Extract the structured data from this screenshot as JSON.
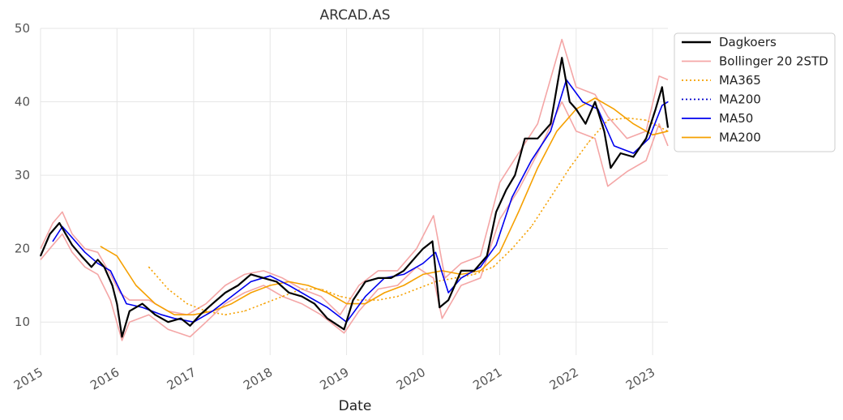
{
  "chart_data": {
    "type": "line",
    "title": "ARCAD.AS",
    "xlabel": "Date",
    "ylabel": "",
    "xlim": [
      "2015-01-01",
      "2023-03-15"
    ],
    "ylim": [
      5.5,
      50
    ],
    "x_ticks": [
      "2015",
      "2016",
      "2017",
      "2018",
      "2019",
      "2020",
      "2021",
      "2022",
      "2023"
    ],
    "y_ticks": [
      10,
      20,
      30,
      40,
      50
    ],
    "grid": true,
    "legend_position": "top-right outside",
    "series": [
      {
        "name": "Dagkoers",
        "color": "#000000",
        "style": "solid",
        "points": [
          [
            "2015-01-01",
            19
          ],
          [
            "2015-02-15",
            22
          ],
          [
            "2015-04-01",
            23.5
          ],
          [
            "2015-05-01",
            22
          ],
          [
            "2015-06-01",
            20.5
          ],
          [
            "2015-07-15",
            19
          ],
          [
            "2015-09-01",
            17.5
          ],
          [
            "2015-10-01",
            18.5
          ],
          [
            "2015-11-01",
            17.5
          ],
          [
            "2015-12-10",
            15
          ],
          [
            "2016-01-01",
            12.5
          ],
          [
            "2016-01-25",
            8
          ],
          [
            "2016-03-01",
            11.5
          ],
          [
            "2016-05-01",
            12.5
          ],
          [
            "2016-07-01",
            11
          ],
          [
            "2016-09-01",
            10
          ],
          [
            "2016-11-01",
            10.5
          ],
          [
            "2016-12-15",
            9.5
          ],
          [
            "2017-02-01",
            11
          ],
          [
            "2017-04-01",
            12.5
          ],
          [
            "2017-06-01",
            14
          ],
          [
            "2017-08-01",
            15
          ],
          [
            "2017-10-01",
            16.5
          ],
          [
            "2017-12-01",
            16
          ],
          [
            "2018-02-01",
            15.5
          ],
          [
            "2018-04-01",
            14
          ],
          [
            "2018-06-01",
            13.5
          ],
          [
            "2018-08-01",
            12.5
          ],
          [
            "2018-10-01",
            10.5
          ],
          [
            "2018-12-20",
            9
          ],
          [
            "2019-02-01",
            13
          ],
          [
            "2019-04-01",
            15.5
          ],
          [
            "2019-06-01",
            16
          ],
          [
            "2019-08-01",
            16
          ],
          [
            "2019-10-01",
            17
          ],
          [
            "2019-12-01",
            19
          ],
          [
            "2020-01-01",
            20
          ],
          [
            "2020-02-15",
            21
          ],
          [
            "2020-03-20",
            12
          ],
          [
            "2020-05-01",
            13
          ],
          [
            "2020-07-01",
            17
          ],
          [
            "2020-09-01",
            17
          ],
          [
            "2020-11-01",
            19
          ],
          [
            "2020-12-15",
            25
          ],
          [
            "2021-02-01",
            28
          ],
          [
            "2021-03-15",
            30
          ],
          [
            "2021-05-01",
            35
          ],
          [
            "2021-07-01",
            35
          ],
          [
            "2021-09-01",
            37
          ],
          [
            "2021-10-25",
            46
          ],
          [
            "2021-12-01",
            40
          ],
          [
            "2022-01-01",
            39
          ],
          [
            "2022-02-15",
            37
          ],
          [
            "2022-04-01",
            40
          ],
          [
            "2022-05-15",
            36
          ],
          [
            "2022-06-15",
            31
          ],
          [
            "2022-08-01",
            33
          ],
          [
            "2022-10-01",
            32.5
          ],
          [
            "2022-12-01",
            35
          ],
          [
            "2023-01-15",
            39
          ],
          [
            "2023-02-15",
            42
          ],
          [
            "2023-03-15",
            36.5
          ]
        ]
      },
      {
        "name": "Bollinger 20 2STD",
        "color": "#f4a6a6",
        "style": "solid",
        "upper": [
          [
            "2015-01-01",
            20
          ],
          [
            "2015-03-01",
            23.5
          ],
          [
            "2015-04-15",
            25
          ],
          [
            "2015-06-01",
            22
          ],
          [
            "2015-08-01",
            20
          ],
          [
            "2015-10-01",
            19.5
          ],
          [
            "2015-12-01",
            16.5
          ],
          [
            "2016-01-15",
            14
          ],
          [
            "2016-03-01",
            13
          ],
          [
            "2016-06-01",
            13
          ],
          [
            "2016-09-01",
            11.5
          ],
          [
            "2016-12-01",
            11
          ],
          [
            "2017-03-01",
            12.5
          ],
          [
            "2017-06-01",
            15
          ],
          [
            "2017-09-01",
            16.5
          ],
          [
            "2017-12-01",
            17
          ],
          [
            "2018-03-01",
            16
          ],
          [
            "2018-06-01",
            14.5
          ],
          [
            "2018-09-01",
            13.5
          ],
          [
            "2018-12-01",
            11
          ],
          [
            "2019-03-01",
            15
          ],
          [
            "2019-06-01",
            17
          ],
          [
            "2019-09-01",
            17
          ],
          [
            "2019-12-01",
            20
          ],
          [
            "2020-02-20",
            24.5
          ],
          [
            "2020-04-15",
            16
          ],
          [
            "2020-07-01",
            18
          ],
          [
            "2020-10-01",
            19
          ],
          [
            "2021-01-01",
            29
          ],
          [
            "2021-04-01",
            33
          ],
          [
            "2021-07-01",
            37
          ],
          [
            "2021-10-25",
            48.5
          ],
          [
            "2022-01-01",
            42
          ],
          [
            "2022-04-01",
            41
          ],
          [
            "2022-06-01",
            38
          ],
          [
            "2022-09-01",
            35
          ],
          [
            "2022-12-01",
            36
          ],
          [
            "2023-02-01",
            43.5
          ],
          [
            "2023-03-15",
            43
          ]
        ],
        "lower": [
          [
            "2015-01-01",
            18.5
          ],
          [
            "2015-03-01",
            20.5
          ],
          [
            "2015-04-15",
            22
          ],
          [
            "2015-06-01",
            19.5
          ],
          [
            "2015-08-01",
            17.5
          ],
          [
            "2015-10-01",
            16.5
          ],
          [
            "2015-12-01",
            13
          ],
          [
            "2016-01-25",
            7.5
          ],
          [
            "2016-03-01",
            10
          ],
          [
            "2016-06-01",
            11
          ],
          [
            "2016-09-01",
            9
          ],
          [
            "2016-12-15",
            8
          ],
          [
            "2017-03-01",
            10
          ],
          [
            "2017-06-01",
            12.5
          ],
          [
            "2017-09-01",
            14
          ],
          [
            "2017-12-01",
            15
          ],
          [
            "2018-03-01",
            13.5
          ],
          [
            "2018-06-01",
            12.5
          ],
          [
            "2018-09-01",
            11
          ],
          [
            "2018-12-20",
            8.5
          ],
          [
            "2019-03-01",
            11.5
          ],
          [
            "2019-06-01",
            14.5
          ],
          [
            "2019-09-01",
            15
          ],
          [
            "2019-12-01",
            17.5
          ],
          [
            "2020-02-20",
            16
          ],
          [
            "2020-04-01",
            10.5
          ],
          [
            "2020-07-01",
            15
          ],
          [
            "2020-10-01",
            16
          ],
          [
            "2021-01-01",
            24
          ],
          [
            "2021-04-01",
            28
          ],
          [
            "2021-07-01",
            33
          ],
          [
            "2021-10-25",
            40
          ],
          [
            "2022-01-01",
            36
          ],
          [
            "2022-04-01",
            35
          ],
          [
            "2022-06-01",
            28.5
          ],
          [
            "2022-09-01",
            30.5
          ],
          [
            "2022-12-01",
            32
          ],
          [
            "2023-02-01",
            37
          ],
          [
            "2023-03-15",
            34
          ]
        ]
      },
      {
        "name": "MA365",
        "color": "#f5a000",
        "style": "dotted",
        "points": [
          [
            "2016-06-01",
            17.5
          ],
          [
            "2016-09-01",
            14.5
          ],
          [
            "2016-12-01",
            12.5
          ],
          [
            "2017-03-01",
            11.5
          ],
          [
            "2017-06-01",
            11
          ],
          [
            "2017-09-01",
            11.5
          ],
          [
            "2017-12-01",
            12.5
          ],
          [
            "2018-03-01",
            13.5
          ],
          [
            "2018-06-01",
            14.5
          ],
          [
            "2018-09-01",
            14.5
          ],
          [
            "2018-12-01",
            13.5
          ],
          [
            "2019-03-01",
            13
          ],
          [
            "2019-06-01",
            13
          ],
          [
            "2019-09-01",
            13.5
          ],
          [
            "2019-12-01",
            14.5
          ],
          [
            "2020-03-01",
            15.5
          ],
          [
            "2020-06-01",
            16
          ],
          [
            "2020-09-01",
            16.5
          ],
          [
            "2020-12-01",
            17.5
          ],
          [
            "2021-03-01",
            20
          ],
          [
            "2021-06-01",
            23
          ],
          [
            "2021-09-01",
            27
          ],
          [
            "2021-12-01",
            31
          ],
          [
            "2022-03-01",
            34.5
          ],
          [
            "2022-06-01",
            37.5
          ],
          [
            "2022-09-01",
            37.8
          ],
          [
            "2022-12-01",
            37.5
          ],
          [
            "2023-03-15",
            36
          ]
        ]
      },
      {
        "name": "MA200",
        "color": "#0000cc",
        "style": "dotted",
        "points": []
      },
      {
        "name": "MA50",
        "color": "#0000ee",
        "style": "solid",
        "points": [
          [
            "2015-03-01",
            21
          ],
          [
            "2015-04-15",
            23
          ],
          [
            "2015-06-01",
            21.5
          ],
          [
            "2015-08-01",
            19.5
          ],
          [
            "2015-10-01",
            18
          ],
          [
            "2015-12-01",
            17
          ],
          [
            "2016-02-15",
            12.5
          ],
          [
            "2016-05-01",
            12
          ],
          [
            "2016-08-01",
            11
          ],
          [
            "2016-10-01",
            10.5
          ],
          [
            "2017-01-01",
            10
          ],
          [
            "2017-04-01",
            11.5
          ],
          [
            "2017-07-01",
            13.5
          ],
          [
            "2017-10-01",
            15.5
          ],
          [
            "2018-01-01",
            16.3
          ],
          [
            "2018-04-01",
            15
          ],
          [
            "2018-07-01",
            13.5
          ],
          [
            "2018-10-01",
            12
          ],
          [
            "2019-01-01",
            10
          ],
          [
            "2019-04-01",
            13.5
          ],
          [
            "2019-07-01",
            16
          ],
          [
            "2019-10-01",
            16.5
          ],
          [
            "2020-01-01",
            18
          ],
          [
            "2020-03-01",
            19.5
          ],
          [
            "2020-05-01",
            14
          ],
          [
            "2020-07-01",
            16
          ],
          [
            "2020-10-01",
            17.5
          ],
          [
            "2020-12-15",
            20.5
          ],
          [
            "2021-03-01",
            27
          ],
          [
            "2021-06-01",
            32
          ],
          [
            "2021-09-01",
            36
          ],
          [
            "2021-11-15",
            43
          ],
          [
            "2022-02-01",
            40
          ],
          [
            "2022-04-15",
            39
          ],
          [
            "2022-07-01",
            34
          ],
          [
            "2022-10-01",
            33
          ],
          [
            "2022-12-15",
            35
          ],
          [
            "2023-02-15",
            39.5
          ],
          [
            "2023-03-15",
            40
          ]
        ]
      },
      {
        "name": "MA200",
        "color": "#f5a000",
        "style": "solid",
        "points": [
          [
            "2015-10-15",
            20.3
          ],
          [
            "2016-01-01",
            19
          ],
          [
            "2016-04-01",
            15
          ],
          [
            "2016-07-01",
            12.5
          ],
          [
            "2016-10-01",
            11
          ],
          [
            "2017-01-01",
            11
          ],
          [
            "2017-04-01",
            11.5
          ],
          [
            "2017-07-01",
            12.5
          ],
          [
            "2017-10-01",
            14
          ],
          [
            "2018-01-01",
            15
          ],
          [
            "2018-04-01",
            15.5
          ],
          [
            "2018-07-01",
            15
          ],
          [
            "2018-10-01",
            14
          ],
          [
            "2019-01-01",
            12.5
          ],
          [
            "2019-04-01",
            12.5
          ],
          [
            "2019-07-01",
            14
          ],
          [
            "2019-10-01",
            15
          ],
          [
            "2020-01-01",
            16.5
          ],
          [
            "2020-04-01",
            17
          ],
          [
            "2020-07-01",
            16.5
          ],
          [
            "2020-10-01",
            17
          ],
          [
            "2021-01-01",
            19.5
          ],
          [
            "2021-04-01",
            25
          ],
          [
            "2021-07-01",
            31
          ],
          [
            "2021-10-01",
            36
          ],
          [
            "2022-01-01",
            39
          ],
          [
            "2022-04-01",
            40.5
          ],
          [
            "2022-07-01",
            39
          ],
          [
            "2022-10-01",
            37
          ],
          [
            "2023-01-01",
            35.5
          ],
          [
            "2023-03-15",
            36
          ]
        ]
      }
    ]
  }
}
